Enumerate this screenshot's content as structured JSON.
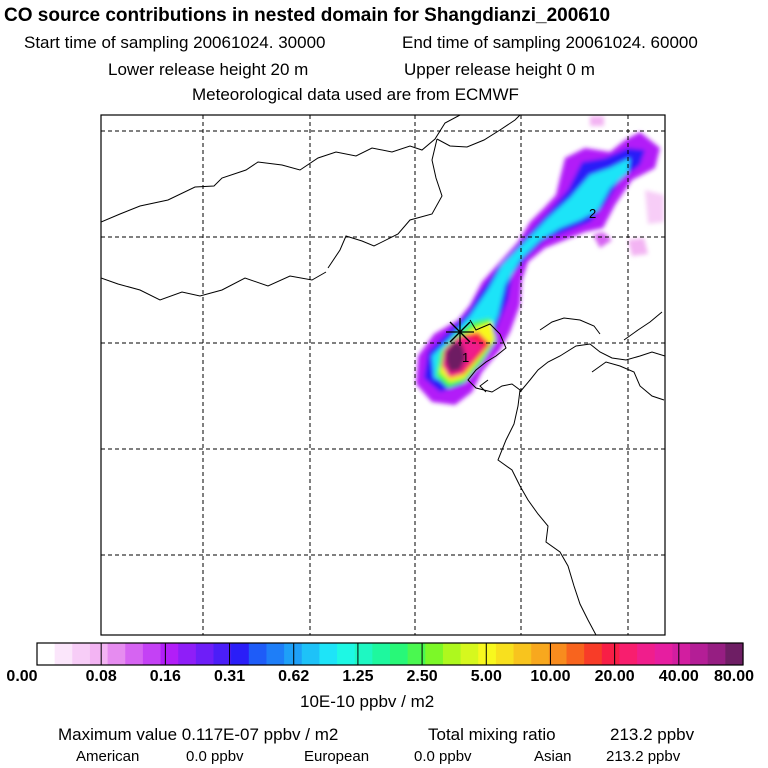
{
  "header": {
    "title": "CO  source contributions in nested domain for Shangdianzi_200610",
    "start_label": "Start time of sampling 20061024. 30000",
    "end_label": "End time of sampling 20061024. 60000",
    "lower_label": "Lower release height   20 m",
    "upper_label": "Upper release height    0 m",
    "met_label": "Meteorological data used are from ECMWF"
  },
  "chart_data": {
    "type": "heatmap",
    "colorbar": {
      "tick_labels": [
        "0.00",
        "0.08",
        "0.16",
        "0.31",
        "0.62",
        "1.25",
        "2.50",
        "5.00",
        "10.00",
        "20.00",
        "40.00",
        "80.00"
      ],
      "unit_label": "10E-10 ppbv / m2",
      "colors": [
        "#ffffff",
        "#fbe6fb",
        "#f7cdf7",
        "#f3b4f3",
        "#e68cf0",
        "#d664f2",
        "#c441f5",
        "#b21ef8",
        "#8f1ef8",
        "#6e1ef8",
        "#4b1ef8",
        "#2a1ef8",
        "#1e5cf8",
        "#1e7ef8",
        "#1ea0f8",
        "#1ec2f8",
        "#1ee4f8",
        "#1ef8e4",
        "#1ef8c2",
        "#1ef89e",
        "#28f878",
        "#4af850",
        "#7cf828",
        "#aef81e",
        "#d6f81e",
        "#f8f81e",
        "#f8e01e",
        "#f8c41e",
        "#f8a81e",
        "#f88c1e",
        "#f8641e",
        "#f83c28",
        "#f81e46",
        "#f81e6e",
        "#f01e8c",
        "#e61ea0",
        "#d21ea0",
        "#b41e96",
        "#961e82",
        "#6e1e64"
      ]
    },
    "receptor_marker": "+",
    "plume_labels": [
      "1",
      "2"
    ]
  },
  "footer": {
    "max_label": "Maximum value  0.117E-07 ppbv / m2",
    "total_label": "Total mixing ratio",
    "total_value": "213.2 ppbv",
    "american_label": "American",
    "american_value": "0.0 ppbv",
    "european_label": "European",
    "european_value": "0.0 ppbv",
    "asian_label": "Asian",
    "asian_value": "213.2 ppbv"
  }
}
